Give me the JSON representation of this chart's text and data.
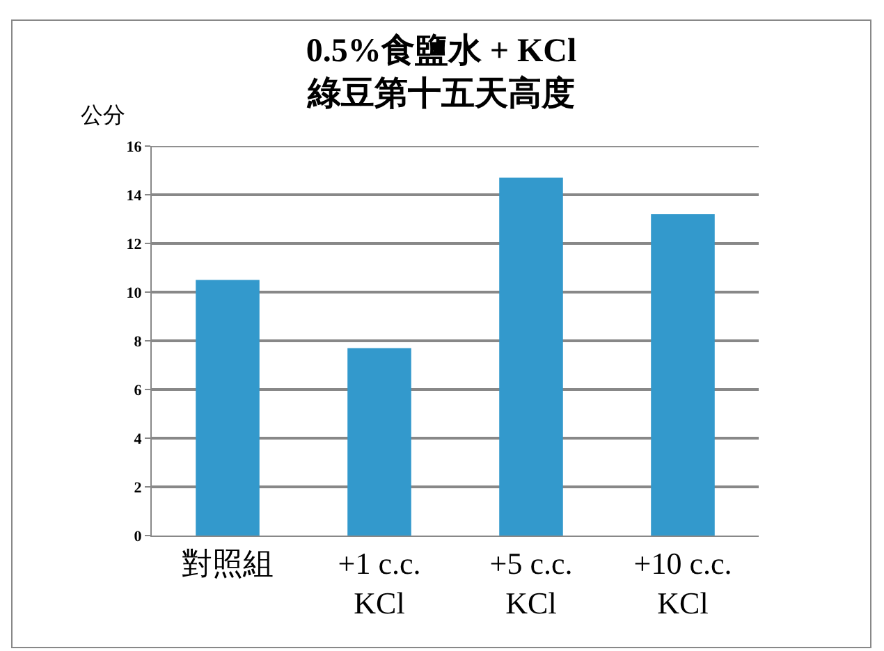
{
  "chart_data": {
    "type": "bar",
    "title": "0.5%食鹽水 + KCl\n綠豆第十五天高度",
    "ylabel": "公分",
    "categories": [
      "對照組",
      "+1 c.c.\nKCl",
      "+5 c.c.\nKCl",
      "+10 c.c.\nKCl"
    ],
    "values": [
      10.5,
      7.7,
      14.7,
      13.2
    ],
    "color": "#3399cc",
    "ylim": [
      0,
      16
    ],
    "yticks": [
      0,
      2,
      4,
      6,
      8,
      10,
      12,
      14,
      16
    ],
    "grid": "y"
  }
}
